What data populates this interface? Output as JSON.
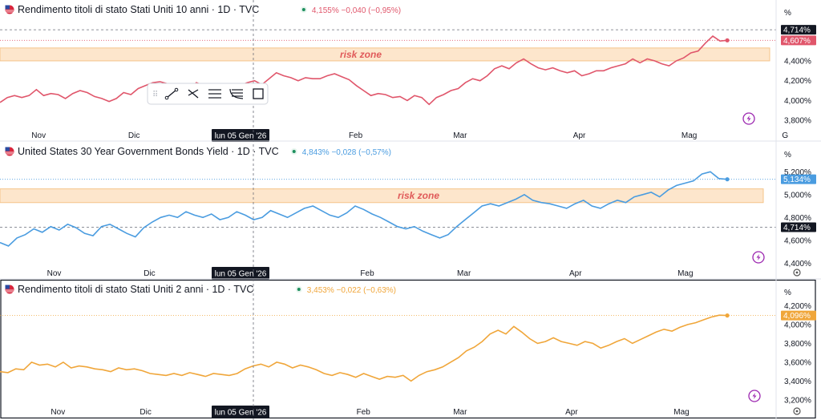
{
  "crosshair_date": "lun 05 Gen '26",
  "colors": {
    "red": "#e0566b",
    "blue": "#4a9ce0",
    "orange": "#f0a63a",
    "zone": "#fde6cc",
    "zone_border": "#f5c48a",
    "dark": "#131722"
  },
  "icons": [
    "flag-us-icon",
    "lightning-icon",
    "settings-icon",
    "drawing-tool-icons"
  ],
  "chart_data": [
    {
      "type": "line",
      "title": "Rendimento titoli di stato Stati Uniti 10 anni · 1D · TVC",
      "quote": "4,155%",
      "change": "−0,040 (−0,95%)",
      "unit": "%",
      "x_labels": [
        "Nov",
        "Dic",
        "Feb",
        "Mar",
        "Apr",
        "Mag",
        "G"
      ],
      "x_label_pos": [
        0.02,
        0.145,
        0.43,
        0.565,
        0.72,
        0.86,
        0.99
      ],
      "y_ticks": [
        "4,400%",
        "4,200%",
        "4,000%",
        "3,800%"
      ],
      "y_tick_values": [
        4.4,
        4.2,
        4.0,
        3.8
      ],
      "ylim": [
        3.72,
        4.82
      ],
      "last_label": "4,607%",
      "last_value": 4.607,
      "ref_label": "4,714%",
      "ref_value": 4.714,
      "risk_zone_label": "risk zone",
      "risk_zone": [
        4.4,
        4.53
      ],
      "values": [
        3.98,
        4.03,
        4.05,
        4.03,
        4.05,
        4.11,
        4.05,
        4.07,
        4.06,
        4.02,
        4.07,
        4.1,
        4.08,
        4.04,
        4.02,
        3.99,
        4.02,
        4.08,
        4.06,
        4.12,
        4.15,
        4.18,
        4.19,
        4.17,
        4.14,
        4.12,
        4.1,
        4.18,
        4.15,
        4.12,
        4.17,
        4.16,
        4.13,
        4.15,
        4.18,
        4.2,
        4.16,
        4.22,
        4.28,
        4.25,
        4.23,
        4.2,
        4.23,
        4.22,
        4.22,
        4.25,
        4.27,
        4.24,
        4.21,
        4.15,
        4.1,
        4.05,
        4.07,
        4.06,
        4.03,
        4.04,
        4.0,
        4.05,
        4.03,
        3.96,
        4.03,
        4.06,
        4.1,
        4.12,
        4.18,
        4.22,
        4.2,
        4.25,
        4.32,
        4.35,
        4.32,
        4.38,
        4.42,
        4.37,
        4.33,
        4.31,
        4.33,
        4.3,
        4.28,
        4.3,
        4.25,
        4.27,
        4.3,
        4.3,
        4.33,
        4.35,
        4.37,
        4.42,
        4.38,
        4.42,
        4.4,
        4.37,
        4.35,
        4.4,
        4.43,
        4.48,
        4.5,
        4.58,
        4.65,
        4.6,
        4.607
      ],
      "x_start": 0.0,
      "x_end": 0.94
    },
    {
      "type": "line",
      "title": "United States 30 Year Government Bonds Yield · 1D · TVC",
      "quote": "4,843%",
      "change": "−0,028 (−0,57%)",
      "unit": "%",
      "x_labels": [
        "Nov",
        "Dic",
        "Feb",
        "Mar",
        "Apr",
        "Mag"
      ],
      "x_label_pos": [
        0.04,
        0.165,
        0.445,
        0.57,
        0.715,
        0.855
      ],
      "y_ticks": [
        "5,200%",
        "5,000%",
        "4,800%",
        "4,600%",
        "4,400%"
      ],
      "y_tick_values": [
        5.2,
        5.0,
        4.8,
        4.6,
        4.4
      ],
      "ylim": [
        4.36,
        5.3
      ],
      "last_label": "5,134%",
      "last_value": 5.134,
      "ref_label": "4,714%",
      "ref_value": 4.714,
      "risk_zone_label": "risk zone",
      "risk_zone": [
        4.93,
        5.05
      ],
      "values": [
        4.58,
        4.55,
        4.62,
        4.65,
        4.7,
        4.67,
        4.72,
        4.69,
        4.74,
        4.71,
        4.66,
        4.64,
        4.72,
        4.74,
        4.7,
        4.66,
        4.63,
        4.71,
        4.76,
        4.8,
        4.82,
        4.8,
        4.85,
        4.82,
        4.8,
        4.83,
        4.78,
        4.8,
        4.85,
        4.82,
        4.78,
        4.8,
        4.86,
        4.83,
        4.8,
        4.84,
        4.88,
        4.9,
        4.86,
        4.82,
        4.8,
        4.84,
        4.9,
        4.87,
        4.83,
        4.8,
        4.76,
        4.72,
        4.7,
        4.72,
        4.68,
        4.65,
        4.62,
        4.65,
        4.72,
        4.78,
        4.84,
        4.9,
        4.92,
        4.9,
        4.93,
        4.96,
        5.0,
        4.95,
        4.93,
        4.92,
        4.9,
        4.88,
        4.92,
        4.95,
        4.9,
        4.88,
        4.92,
        4.95,
        4.93,
        4.98,
        5.0,
        5.02,
        4.98,
        5.04,
        5.08,
        5.1,
        5.12,
        5.18,
        5.2,
        5.14,
        5.134
      ],
      "x_start": 0.0,
      "x_end": 0.94
    },
    {
      "type": "line",
      "title": "Rendimento titoli di stato Stati Uniti 2 anni · 1D · TVC",
      "quote": "3,453%",
      "change": "−0,022 (−0,63%)",
      "unit": "%",
      "x_labels": [
        "Nov",
        "Dic",
        "Feb",
        "Mar",
        "Apr",
        "Mag"
      ],
      "x_label_pos": [
        0.045,
        0.16,
        0.44,
        0.565,
        0.71,
        0.85
      ],
      "y_ticks": [
        "4,200%",
        "4,000%",
        "3,800%",
        "3,600%",
        "3,400%",
        "3,200%"
      ],
      "y_tick_values": [
        4.2,
        4.0,
        3.8,
        3.6,
        3.4,
        3.2
      ],
      "ylim": [
        3.14,
        4.28
      ],
      "last_label": "4,096%",
      "last_value": 4.096,
      "values": [
        3.5,
        3.49,
        3.53,
        3.52,
        3.6,
        3.57,
        3.58,
        3.55,
        3.6,
        3.54,
        3.56,
        3.55,
        3.53,
        3.52,
        3.5,
        3.54,
        3.52,
        3.53,
        3.51,
        3.48,
        3.47,
        3.46,
        3.48,
        3.46,
        3.49,
        3.47,
        3.45,
        3.48,
        3.47,
        3.46,
        3.48,
        3.53,
        3.56,
        3.58,
        3.55,
        3.6,
        3.58,
        3.54,
        3.57,
        3.55,
        3.52,
        3.48,
        3.46,
        3.49,
        3.47,
        3.44,
        3.48,
        3.45,
        3.42,
        3.45,
        3.44,
        3.46,
        3.4,
        3.46,
        3.5,
        3.52,
        3.55,
        3.6,
        3.65,
        3.72,
        3.76,
        3.82,
        3.9,
        3.94,
        3.9,
        3.98,
        3.92,
        3.85,
        3.8,
        3.82,
        3.86,
        3.82,
        3.8,
        3.78,
        3.82,
        3.8,
        3.75,
        3.78,
        3.82,
        3.85,
        3.8,
        3.84,
        3.88,
        3.92,
        3.95,
        3.93,
        3.97,
        4.0,
        4.02,
        4.05,
        4.08,
        4.1,
        4.096
      ],
      "x_start": 0.0,
      "x_end": 0.94
    }
  ]
}
